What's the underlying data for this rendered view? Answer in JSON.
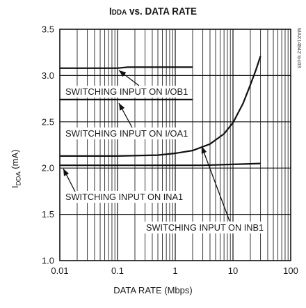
{
  "chart_data": {
    "type": "line",
    "title_main": "I",
    "title_sub": "DDA",
    "title_rest": " vs. DATA RATE",
    "ylabel_main": "I",
    "ylabel_sub": "DDA",
    "ylabel_rest": " (mA)",
    "xlabel": "DATA RATE (Mbps)",
    "side_id": "MAX14842 toc03",
    "x_scale": "log",
    "xlim": [
      0.01,
      100
    ],
    "ylim": [
      1.0,
      3.5
    ],
    "grid": true,
    "x_ticks": [
      "0.01",
      "0.1",
      "1",
      "10",
      "100"
    ],
    "y_ticks": [
      "1.0",
      "1.5",
      "2.0",
      "2.5",
      "3.0",
      "3.5"
    ],
    "series": [
      {
        "name": "SWITCHING INPUT ON I/OB1",
        "x": [
          0.01,
          0.1,
          0.15,
          2
        ],
        "y": [
          3.08,
          3.08,
          3.09,
          3.09
        ]
      },
      {
        "name": "SWITCHING INPUT ON I/OA1",
        "x": [
          0.01,
          0.1,
          1,
          2
        ],
        "y": [
          2.74,
          2.74,
          2.74,
          2.74
        ]
      },
      {
        "name": "SWITCHING INPUT ON INA1",
        "x": [
          0.01,
          0.1,
          1,
          3,
          10,
          30
        ],
        "y": [
          2.03,
          2.03,
          2.03,
          2.03,
          2.04,
          2.05
        ]
      },
      {
        "name": "SWITCHING INPUT ON INB1",
        "x": [
          0.01,
          0.1,
          0.5,
          1,
          2,
          4,
          7,
          10,
          15,
          20,
          25,
          30
        ],
        "y": [
          2.13,
          2.13,
          2.14,
          2.16,
          2.19,
          2.26,
          2.37,
          2.49,
          2.7,
          2.9,
          3.06,
          3.21
        ]
      }
    ],
    "annotations": [
      "SWITCHING INPUT ON I/OB1",
      "SWITCHING INPUT ON I/OA1",
      "SWITCHING INPUT ON INA1",
      "SWITCHING INPUT ON INB1"
    ]
  }
}
